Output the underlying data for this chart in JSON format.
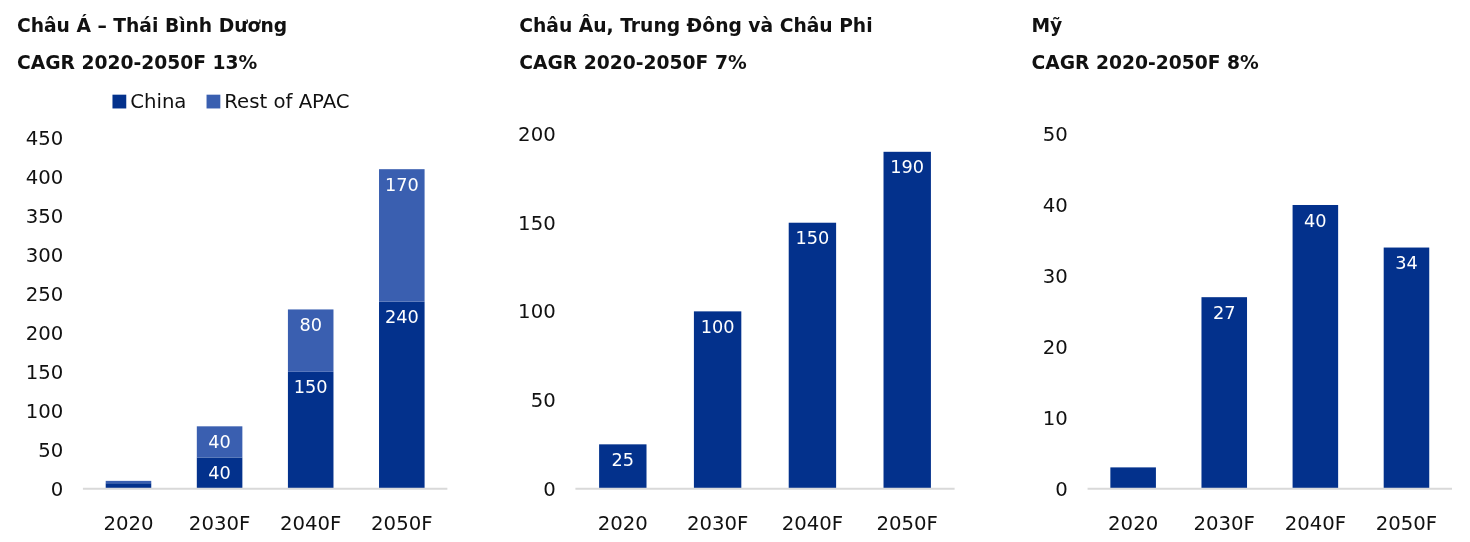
{
  "chart_data": [
    {
      "type": "bar",
      "title": "Châu Á – Thái Bình Dương",
      "subtitle": "CAGR 2020-2050F  13%",
      "categories": [
        "2020",
        "2030F",
        "2040F",
        "2050F"
      ],
      "stacked": true,
      "legend": "top",
      "ylim": [
        0,
        450
      ],
      "yticks": [
        0,
        50,
        100,
        150,
        200,
        250,
        300,
        350,
        400,
        450
      ],
      "series": [
        {
          "name": "China",
          "color": "#03318c",
          "values": [
            7,
            40,
            150,
            240
          ],
          "value_labels": [
            null,
            "40",
            "150",
            "240"
          ]
        },
        {
          "name": "Rest of APAC",
          "color": "#3a5fb0",
          "values": [
            3,
            40,
            80,
            170
          ],
          "value_labels": [
            null,
            "40",
            "80",
            "170"
          ]
        }
      ]
    },
    {
      "type": "bar",
      "title": "Châu Âu, Trung Đông và Châu Phi",
      "subtitle": "CAGR 2020-2050F  7%",
      "categories": [
        "2020",
        "2030F",
        "2040F",
        "2050F"
      ],
      "ylim": [
        0,
        200
      ],
      "yticks": [
        0,
        50,
        100,
        150,
        200
      ],
      "data_labels": true,
      "series": [
        {
          "color": "#03318c",
          "values": [
            25,
            100,
            150,
            190
          ]
        }
      ]
    },
    {
      "type": "bar",
      "title": "Mỹ",
      "subtitle": "CAGR 2020-2050F  8%",
      "categories": [
        "2020",
        "2030F",
        "2040F",
        "2050F"
      ],
      "ylim": [
        0,
        50
      ],
      "yticks": [
        0,
        10,
        20,
        30,
        40,
        50
      ],
      "series": [
        {
          "color": "#03318c",
          "values": [
            3,
            27,
            40,
            34
          ],
          "value_labels": [
            null,
            "27",
            "40",
            "34"
          ]
        }
      ]
    }
  ]
}
